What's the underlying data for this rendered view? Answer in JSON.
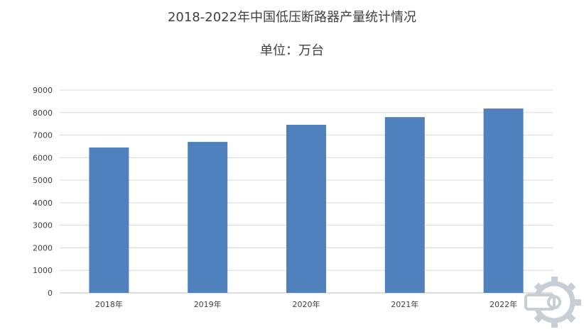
{
  "chart_data": {
    "type": "bar",
    "title": "2018-2022年中国低压断路器产量统计情况",
    "subtitle": "单位：万台",
    "categories": [
      "2018年",
      "2019年",
      "2020年",
      "2021年",
      "2022年"
    ],
    "values": [
      6450,
      6700,
      7460,
      7800,
      8180
    ],
    "ylim": [
      0,
      9000
    ],
    "yticks": [
      0,
      1000,
      2000,
      3000,
      4000,
      5000,
      6000,
      7000,
      8000,
      9000
    ],
    "grid": true,
    "legend": "none",
    "bar_color": "#4f81bd",
    "xlabel": "",
    "ylabel": ""
  },
  "watermark": {
    "icon": "gear-logo-icon",
    "color": "#c8ced6"
  }
}
